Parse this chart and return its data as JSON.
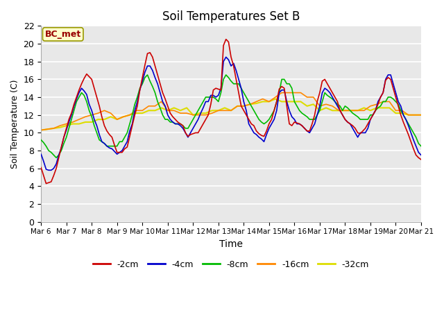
{
  "title": "Soil Temperatures Set B",
  "xlabel": "Time",
  "ylabel": "Soil Temperature (C)",
  "annotation": "BC_met",
  "ylim": [
    0,
    22
  ],
  "yticks": [
    0,
    2,
    4,
    6,
    8,
    10,
    12,
    14,
    16,
    18,
    20,
    22
  ],
  "x_labels": [
    "Mar 6",
    "Mar 7",
    "Mar 8",
    "Mar 9",
    "Mar 10",
    "Mar 11",
    "Mar 12",
    "Mar 13",
    "Mar 14",
    "Mar 15",
    "Mar 16",
    "Mar 17",
    "Mar 18",
    "Mar 19",
    "Mar 20",
    "Mar 21"
  ],
  "fig_bg": "#ffffff",
  "plot_bg": "#e8e8e8",
  "grid_color": "#ffffff",
  "series": {
    "-2cm": {
      "color": "#cc0000",
      "lw": 1.2
    },
    "-4cm": {
      "color": "#0000cc",
      "lw": 1.2
    },
    "-8cm": {
      "color": "#00bb00",
      "lw": 1.2
    },
    "-16cm": {
      "color": "#ff8800",
      "lw": 1.2
    },
    "-32cm": {
      "color": "#dddd00",
      "lw": 1.5
    }
  },
  "data_2cm_x": [
    0.0,
    0.1,
    0.2,
    0.3,
    0.4,
    0.5,
    0.6,
    0.7,
    0.8,
    0.9,
    1.0,
    1.1,
    1.2,
    1.3,
    1.4,
    1.5,
    1.6,
    1.7,
    1.8,
    1.9,
    2.0,
    2.1,
    2.2,
    2.3,
    2.4,
    2.5,
    2.6,
    2.7,
    2.8,
    2.9,
    3.0,
    3.1,
    3.2,
    3.3,
    3.4,
    3.5,
    3.6,
    3.7,
    3.8,
    3.9,
    4.0,
    4.1,
    4.2,
    4.3,
    4.4,
    4.5,
    4.6,
    4.7,
    4.8,
    4.9,
    5.0,
    5.1,
    5.2,
    5.3,
    5.4,
    5.5,
    5.6,
    5.7,
    5.8,
    5.9,
    6.0,
    6.1,
    6.2,
    6.3,
    6.4,
    6.5,
    6.6,
    6.7,
    6.8,
    6.9,
    7.0,
    7.1,
    7.2,
    7.3,
    7.4,
    7.5,
    7.6,
    7.7,
    7.8,
    7.9,
    8.0,
    8.1,
    8.2,
    8.3,
    8.4,
    8.5,
    8.6,
    8.7,
    8.8,
    8.9,
    9.0,
    9.1,
    9.2,
    9.3,
    9.4,
    9.5,
    9.6,
    9.7,
    9.8,
    9.9,
    10.0,
    10.1,
    10.2,
    10.3,
    10.4,
    10.5,
    10.6,
    10.7,
    10.8,
    10.9,
    11.0,
    11.1,
    11.2,
    11.3,
    11.4,
    11.5,
    11.6,
    11.7,
    11.8,
    11.9,
    12.0,
    12.1,
    12.2,
    12.3,
    12.4,
    12.5,
    12.6,
    12.7,
    12.8,
    12.9,
    13.0,
    13.1,
    13.2,
    13.3,
    13.4,
    13.5,
    13.6,
    13.7,
    13.8,
    13.9,
    14.0,
    14.1,
    14.2,
    14.3,
    14.4,
    14.5,
    14.6,
    14.7,
    14.8,
    14.9,
    15.0
  ],
  "data_2cm_y": [
    6.1,
    5.2,
    4.3,
    4.4,
    4.5,
    5.2,
    6.0,
    7.2,
    8.4,
    9.5,
    10.5,
    11.5,
    12.2,
    13.2,
    14.0,
    14.8,
    15.5,
    16.1,
    16.6,
    16.3,
    16.0,
    15.0,
    14.0,
    13.0,
    11.8,
    10.8,
    10.2,
    9.8,
    9.5,
    8.6,
    7.8,
    7.8,
    7.8,
    8.2,
    8.4,
    9.6,
    10.8,
    12.0,
    13.0,
    14.8,
    16.2,
    17.6,
    18.9,
    19.0,
    18.5,
    17.5,
    16.5,
    15.5,
    14.5,
    13.8,
    13.0,
    12.2,
    11.8,
    11.5,
    11.2,
    11.0,
    10.8,
    10.0,
    9.6,
    9.8,
    9.9,
    10.0,
    10.0,
    10.5,
    11.0,
    11.5,
    12.0,
    13.2,
    14.8,
    15.0,
    14.9,
    14.8,
    19.8,
    20.5,
    20.2,
    18.5,
    17.5,
    16.0,
    14.5,
    13.0,
    12.5,
    12.0,
    11.5,
    11.0,
    10.8,
    10.2,
    9.9,
    9.7,
    9.6,
    10.2,
    11.0,
    11.5,
    12.5,
    13.5,
    14.9,
    15.2,
    15.0,
    13.0,
    11.0,
    10.8,
    11.2,
    11.1,
    11.0,
    10.8,
    10.5,
    10.2,
    10.2,
    11.0,
    12.0,
    13.5,
    14.5,
    15.8,
    16.0,
    15.5,
    15.0,
    14.5,
    14.0,
    13.5,
    12.5,
    12.0,
    11.5,
    11.2,
    11.0,
    10.8,
    10.5,
    10.0,
    9.9,
    10.2,
    10.5,
    11.0,
    11.5,
    12.0,
    12.5,
    13.2,
    14.0,
    14.5,
    15.9,
    16.2,
    16.0,
    15.0,
    14.0,
    13.0,
    12.0,
    11.2,
    10.5,
    9.8,
    9.0,
    8.2,
    7.5,
    7.2,
    7.0
  ],
  "data_4cm_x": [
    0.0,
    0.1,
    0.2,
    0.3,
    0.4,
    0.5,
    0.6,
    0.7,
    0.8,
    0.9,
    1.0,
    1.1,
    1.2,
    1.3,
    1.4,
    1.5,
    1.6,
    1.7,
    1.8,
    1.9,
    2.0,
    2.1,
    2.2,
    2.3,
    2.4,
    2.5,
    2.6,
    2.7,
    2.8,
    2.9,
    3.0,
    3.1,
    3.2,
    3.3,
    3.4,
    3.5,
    3.6,
    3.7,
    3.8,
    3.9,
    4.0,
    4.1,
    4.2,
    4.3,
    4.4,
    4.5,
    4.6,
    4.7,
    4.8,
    4.9,
    5.0,
    5.1,
    5.2,
    5.3,
    5.4,
    5.5,
    5.6,
    5.7,
    5.8,
    5.9,
    6.0,
    6.1,
    6.2,
    6.3,
    6.4,
    6.5,
    6.6,
    6.7,
    6.8,
    6.9,
    7.0,
    7.1,
    7.2,
    7.3,
    7.4,
    7.5,
    7.6,
    7.7,
    7.8,
    7.9,
    8.0,
    8.1,
    8.2,
    8.3,
    8.4,
    8.5,
    8.6,
    8.7,
    8.8,
    8.9,
    9.0,
    9.1,
    9.2,
    9.3,
    9.4,
    9.5,
    9.6,
    9.7,
    9.8,
    9.9,
    10.0,
    10.1,
    10.2,
    10.3,
    10.4,
    10.5,
    10.6,
    10.7,
    10.8,
    10.9,
    11.0,
    11.1,
    11.2,
    11.3,
    11.4,
    11.5,
    11.6,
    11.7,
    11.8,
    11.9,
    12.0,
    12.1,
    12.2,
    12.3,
    12.4,
    12.5,
    12.6,
    12.7,
    12.8,
    12.9,
    13.0,
    13.1,
    13.2,
    13.3,
    13.4,
    13.5,
    13.6,
    13.7,
    13.8,
    13.9,
    14.0,
    14.1,
    14.2,
    14.3,
    14.4,
    14.5,
    14.6,
    14.7,
    14.8,
    14.9,
    15.0
  ],
  "data_4cm_y": [
    7.6,
    6.8,
    5.9,
    5.8,
    5.8,
    6.0,
    6.5,
    7.5,
    8.3,
    9.5,
    10.3,
    11.2,
    12.0,
    13.0,
    13.8,
    14.5,
    15.0,
    14.7,
    14.3,
    13.2,
    12.5,
    11.5,
    10.8,
    9.8,
    9.0,
    8.8,
    8.5,
    8.3,
    8.2,
    7.9,
    7.6,
    7.8,
    8.0,
    8.5,
    9.0,
    10.2,
    11.0,
    12.5,
    13.5,
    14.8,
    15.8,
    16.8,
    17.5,
    17.5,
    17.0,
    16.2,
    15.5,
    14.5,
    13.5,
    13.0,
    12.0,
    11.5,
    11.2,
    11.0,
    11.0,
    10.8,
    10.5,
    10.0,
    9.5,
    10.0,
    10.5,
    11.0,
    11.5,
    12.2,
    12.8,
    13.5,
    13.5,
    14.2,
    14.2,
    14.0,
    14.2,
    15.0,
    18.0,
    18.5,
    18.2,
    17.5,
    17.8,
    17.0,
    16.0,
    15.0,
    13.5,
    12.5,
    11.0,
    10.5,
    10.0,
    9.8,
    9.5,
    9.3,
    9.0,
    9.8,
    10.5,
    11.0,
    11.5,
    12.5,
    14.5,
    14.8,
    14.8,
    13.5,
    12.5,
    11.8,
    11.5,
    11.0,
    11.0,
    10.8,
    10.5,
    10.2,
    10.0,
    10.5,
    11.0,
    12.0,
    13.0,
    14.5,
    15.0,
    14.8,
    14.5,
    14.0,
    13.5,
    13.0,
    12.5,
    12.0,
    11.5,
    11.2,
    11.0,
    10.5,
    10.0,
    9.5,
    10.0,
    10.0,
    10.0,
    10.5,
    11.5,
    12.0,
    12.5,
    13.5,
    14.0,
    14.5,
    16.0,
    16.5,
    16.5,
    15.5,
    14.5,
    13.5,
    13.0,
    12.0,
    11.5,
    10.8,
    10.0,
    9.2,
    8.5,
    7.8,
    7.5
  ],
  "data_8cm_x": [
    0.0,
    0.1,
    0.2,
    0.3,
    0.4,
    0.5,
    0.6,
    0.7,
    0.8,
    0.9,
    1.0,
    1.1,
    1.2,
    1.3,
    1.4,
    1.5,
    1.6,
    1.7,
    1.8,
    1.9,
    2.0,
    2.1,
    2.2,
    2.3,
    2.4,
    2.5,
    2.6,
    2.7,
    2.8,
    2.9,
    3.0,
    3.1,
    3.2,
    3.3,
    3.4,
    3.5,
    3.6,
    3.7,
    3.8,
    3.9,
    4.0,
    4.1,
    4.2,
    4.3,
    4.4,
    4.5,
    4.6,
    4.7,
    4.8,
    4.9,
    5.0,
    5.1,
    5.2,
    5.3,
    5.4,
    5.5,
    5.6,
    5.7,
    5.8,
    5.9,
    6.0,
    6.1,
    6.2,
    6.3,
    6.4,
    6.5,
    6.6,
    6.7,
    6.8,
    6.9,
    7.0,
    7.1,
    7.2,
    7.3,
    7.4,
    7.5,
    7.6,
    7.7,
    7.8,
    7.9,
    8.0,
    8.1,
    8.2,
    8.3,
    8.4,
    8.5,
    8.6,
    8.7,
    8.8,
    8.9,
    9.0,
    9.1,
    9.2,
    9.3,
    9.4,
    9.5,
    9.6,
    9.7,
    9.8,
    9.9,
    10.0,
    10.1,
    10.2,
    10.3,
    10.4,
    10.5,
    10.6,
    10.7,
    10.8,
    10.9,
    11.0,
    11.1,
    11.2,
    11.3,
    11.4,
    11.5,
    11.6,
    11.7,
    11.8,
    11.9,
    12.0,
    12.1,
    12.2,
    12.3,
    12.4,
    12.5,
    12.6,
    12.7,
    12.8,
    12.9,
    13.0,
    13.1,
    13.2,
    13.3,
    13.4,
    13.5,
    13.6,
    13.7,
    13.8,
    13.9,
    14.0,
    14.1,
    14.2,
    14.3,
    14.4,
    14.5,
    14.6,
    14.7,
    14.8,
    14.9,
    15.0
  ],
  "data_8cm_y": [
    9.2,
    8.9,
    8.5,
    8.0,
    7.8,
    7.5,
    7.2,
    7.5,
    8.0,
    8.8,
    9.5,
    10.5,
    11.5,
    12.5,
    13.5,
    14.0,
    14.5,
    14.2,
    13.5,
    12.5,
    11.8,
    10.8,
    10.0,
    9.2,
    9.0,
    8.8,
    8.5,
    8.5,
    8.5,
    8.5,
    8.5,
    9.0,
    9.0,
    9.5,
    10.0,
    11.0,
    12.0,
    13.2,
    14.0,
    15.0,
    15.5,
    16.2,
    16.5,
    15.8,
    15.2,
    14.5,
    13.5,
    12.8,
    12.0,
    11.5,
    11.5,
    11.2,
    11.2,
    11.0,
    11.0,
    11.0,
    10.8,
    10.5,
    10.5,
    11.0,
    11.5,
    12.0,
    12.5,
    13.0,
    13.5,
    14.0,
    14.0,
    14.0,
    14.0,
    13.8,
    13.5,
    14.5,
    16.0,
    16.5,
    16.2,
    15.8,
    15.5,
    15.5,
    15.5,
    15.0,
    14.5,
    14.0,
    13.5,
    13.0,
    12.5,
    12.0,
    11.5,
    11.2,
    11.0,
    11.2,
    11.5,
    12.0,
    12.5,
    13.5,
    14.5,
    16.0,
    16.0,
    15.5,
    15.5,
    15.0,
    13.5,
    13.0,
    12.5,
    12.2,
    12.0,
    11.8,
    11.5,
    11.5,
    11.5,
    12.0,
    12.5,
    13.5,
    14.5,
    14.2,
    14.0,
    13.8,
    13.5,
    13.2,
    13.0,
    12.5,
    13.0,
    12.8,
    12.5,
    12.2,
    12.0,
    11.8,
    11.5,
    11.5,
    11.5,
    11.5,
    12.0,
    12.0,
    12.5,
    12.8,
    13.0,
    13.5,
    13.5,
    14.0,
    14.0,
    13.8,
    13.5,
    13.2,
    12.5,
    12.0,
    11.5,
    11.0,
    10.5,
    10.0,
    9.5,
    8.8,
    8.5
  ],
  "data_16cm_x": [
    0.0,
    0.25,
    0.5,
    0.75,
    1.0,
    1.25,
    1.5,
    1.75,
    2.0,
    2.25,
    2.5,
    2.75,
    3.0,
    3.25,
    3.5,
    3.75,
    4.0,
    4.25,
    4.5,
    4.75,
    5.0,
    5.25,
    5.5,
    5.75,
    6.0,
    6.25,
    6.5,
    6.75,
    7.0,
    7.25,
    7.5,
    7.75,
    8.0,
    8.25,
    8.5,
    8.75,
    9.0,
    9.25,
    9.5,
    9.75,
    10.0,
    10.25,
    10.5,
    10.75,
    11.0,
    11.25,
    11.5,
    11.75,
    12.0,
    12.25,
    12.5,
    12.75,
    13.0,
    13.25,
    13.5,
    13.75,
    14.0,
    14.25,
    14.5,
    14.75,
    15.0
  ],
  "data_16cm_y": [
    10.3,
    10.4,
    10.5,
    10.8,
    11.0,
    11.2,
    11.5,
    11.8,
    12.0,
    12.2,
    12.5,
    12.2,
    11.5,
    11.8,
    12.0,
    12.5,
    12.5,
    13.0,
    13.0,
    13.5,
    12.5,
    12.5,
    12.2,
    12.2,
    12.0,
    12.0,
    12.0,
    12.2,
    12.5,
    12.5,
    12.5,
    13.0,
    13.0,
    13.2,
    13.5,
    13.8,
    13.5,
    14.0,
    14.5,
    14.5,
    14.5,
    14.5,
    14.0,
    14.0,
    13.0,
    13.2,
    13.0,
    12.5,
    12.5,
    12.5,
    12.5,
    12.5,
    13.0,
    13.2,
    13.5,
    13.5,
    12.5,
    12.5,
    12.0,
    12.0,
    12.0
  ],
  "data_32cm_x": [
    0.0,
    0.25,
    0.5,
    0.75,
    1.0,
    1.25,
    1.5,
    1.75,
    2.0,
    2.25,
    2.5,
    2.75,
    3.0,
    3.25,
    3.5,
    3.75,
    4.0,
    4.25,
    4.5,
    4.75,
    5.0,
    5.25,
    5.5,
    5.75,
    6.0,
    6.25,
    6.5,
    6.75,
    7.0,
    7.25,
    7.5,
    7.75,
    8.0,
    8.25,
    8.5,
    8.75,
    9.0,
    9.25,
    9.5,
    9.75,
    10.0,
    10.25,
    10.5,
    10.75,
    11.0,
    11.25,
    11.5,
    11.75,
    12.0,
    12.25,
    12.5,
    12.75,
    13.0,
    13.25,
    13.5,
    13.75,
    14.0,
    14.25,
    14.5,
    14.75,
    15.0
  ],
  "data_32cm_y": [
    10.3,
    10.4,
    10.5,
    10.6,
    10.8,
    11.0,
    11.0,
    11.2,
    11.2,
    11.5,
    11.5,
    11.8,
    11.5,
    11.8,
    12.0,
    12.2,
    12.2,
    12.5,
    12.5,
    12.8,
    12.5,
    12.8,
    12.5,
    12.8,
    12.0,
    12.2,
    12.2,
    12.5,
    12.5,
    12.8,
    12.5,
    13.0,
    13.0,
    13.2,
    13.3,
    13.5,
    13.5,
    13.8,
    13.5,
    13.5,
    13.5,
    13.5,
    13.0,
    13.2,
    12.5,
    12.8,
    12.5,
    12.5,
    12.5,
    12.5,
    12.5,
    12.8,
    12.5,
    12.8,
    12.8,
    12.8,
    12.2,
    12.2,
    12.0,
    12.0,
    12.0
  ]
}
